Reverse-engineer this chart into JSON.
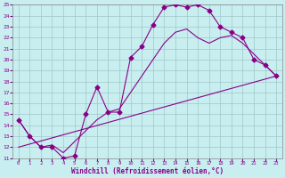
{
  "xlabel": "Windchill (Refroidissement éolien,°C)",
  "xlim": [
    -0.5,
    23.5
  ],
  "ylim": [
    11,
    25
  ],
  "xticks": [
    0,
    1,
    2,
    3,
    4,
    5,
    6,
    7,
    8,
    9,
    10,
    11,
    12,
    13,
    14,
    15,
    16,
    17,
    18,
    19,
    20,
    21,
    22,
    23
  ],
  "yticks": [
    11,
    12,
    13,
    14,
    15,
    16,
    17,
    18,
    19,
    20,
    21,
    22,
    23,
    24,
    25
  ],
  "bg_color": "#c8eef0",
  "grid_color": "#a0c8c8",
  "line_color": "#880088",
  "curve_main_x": [
    0,
    1,
    2,
    3,
    4,
    5,
    6,
    7,
    8,
    9,
    10,
    11,
    12,
    13,
    14,
    15,
    16,
    17,
    18,
    19,
    20,
    21,
    22,
    23
  ],
  "curve_main_y": [
    14.5,
    13.0,
    12.0,
    12.0,
    11.0,
    11.2,
    15.0,
    17.5,
    15.2,
    15.2,
    20.2,
    21.2,
    23.2,
    24.8,
    25.0,
    24.8,
    25.0,
    24.5,
    23.0,
    22.5,
    22.0,
    20.0,
    19.5,
    18.5
  ],
  "curve_smooth_x": [
    0,
    1,
    2,
    3,
    4,
    5,
    6,
    7,
    8,
    9,
    10,
    11,
    12,
    13,
    14,
    15,
    16,
    17,
    18,
    19,
    20,
    21,
    22,
    23
  ],
  "curve_smooth_y": [
    14.5,
    13.0,
    12.0,
    12.2,
    11.5,
    12.5,
    13.5,
    14.5,
    15.2,
    15.5,
    17.0,
    18.5,
    20.0,
    21.5,
    22.5,
    22.8,
    22.0,
    21.5,
    22.0,
    22.2,
    21.5,
    20.5,
    19.5,
    18.5
  ],
  "curve_line_x": [
    0,
    23
  ],
  "curve_line_y": [
    12.0,
    18.5
  ],
  "markersize": 2.5
}
